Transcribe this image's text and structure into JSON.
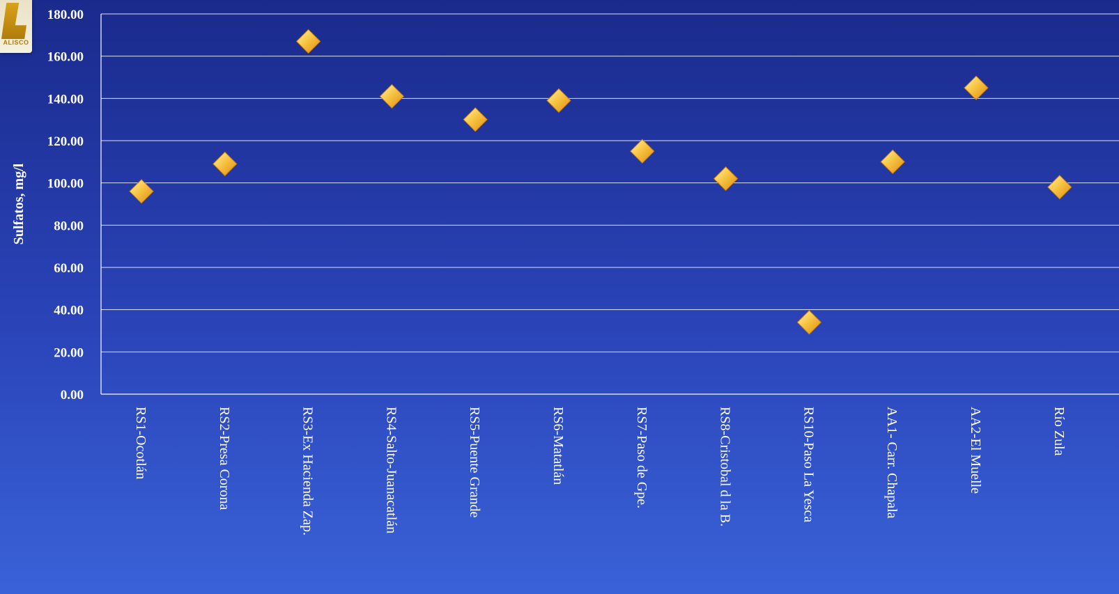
{
  "logo": {
    "text": "ALISCO"
  },
  "chart_data": {
    "type": "scatter",
    "title": "",
    "xlabel": "",
    "ylabel": "Sulfatos, mg/l",
    "ylim": [
      0,
      180
    ],
    "yticks": [
      0,
      20,
      40,
      60,
      80,
      100,
      120,
      140,
      160,
      180
    ],
    "ytick_labels": [
      "0.00",
      "20.00",
      "40.00",
      "60.00",
      "80.00",
      "100.00",
      "120.00",
      "140.00",
      "160.00",
      "180.00"
    ],
    "grid": true,
    "marker": "diamond",
    "marker_color": "#f6b62a",
    "categories": [
      "RS1-Ocotlán",
      "RS2-Presa Corona",
      "RS3-Ex Hacienda Zap.",
      "RS4-Salto-Juanacatlán",
      "RS5-Puente Grande",
      "RS6-Matatlán",
      "RS7-Paso de Gpe.",
      "RS8-Cristobal d la B.",
      "RS10-Paso La Yesca",
      "AA1- Carr. Chapala",
      "AA2-El Muelle",
      "Río Zula"
    ],
    "values": [
      96,
      109,
      167,
      141,
      130,
      139,
      115,
      102,
      34,
      110,
      145,
      98
    ]
  }
}
